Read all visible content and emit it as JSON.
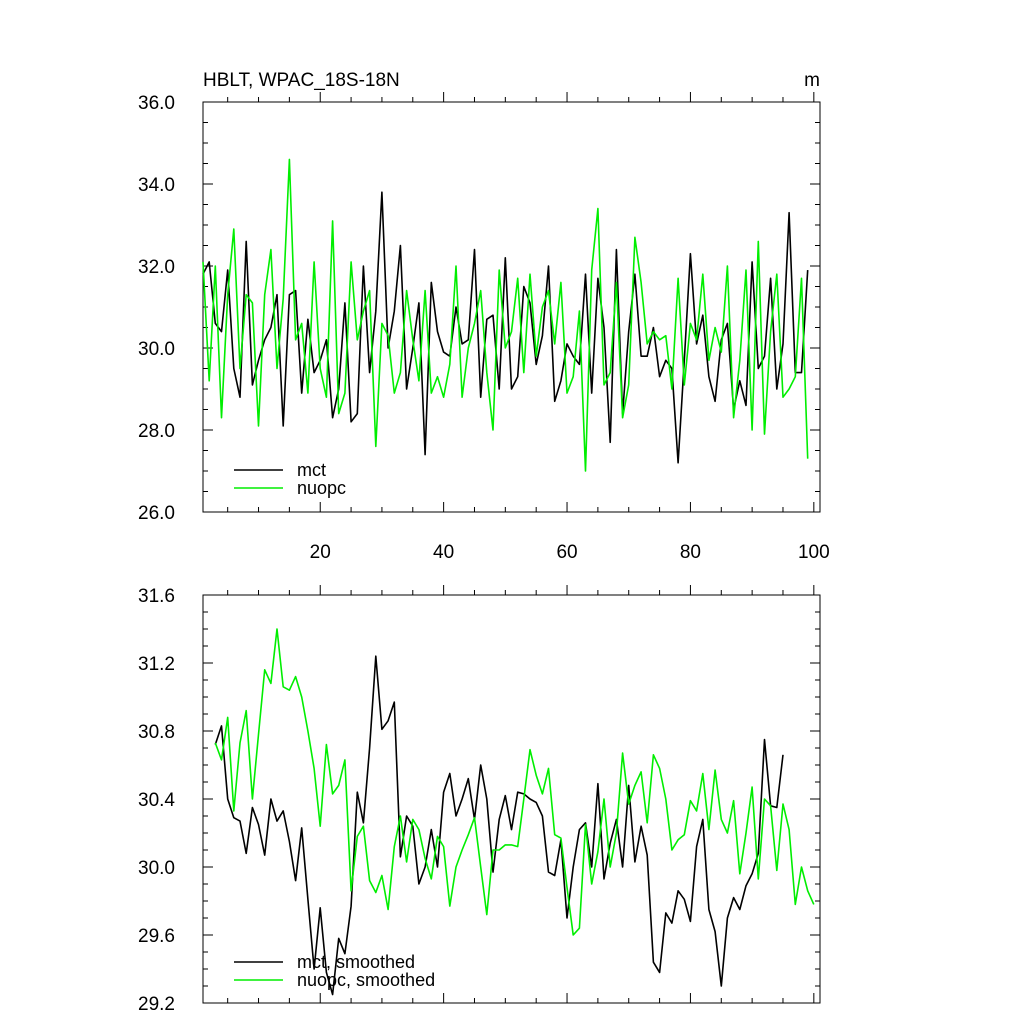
{
  "header": {
    "title": "HBLT, WPAC_18S-18N",
    "units": "m"
  },
  "chart_data": [
    {
      "type": "line",
      "title": "HBLT, WPAC_18S-18N",
      "units": "m",
      "xlim": [
        1,
        101
      ],
      "ylim": [
        26.0,
        36.0
      ],
      "xticks": [
        20,
        40,
        60,
        80,
        100
      ],
      "yticks": [
        "26.0",
        "28.0",
        "30.0",
        "32.0",
        "34.0",
        "36.0"
      ],
      "legend_position": "bottom-left",
      "series": [
        {
          "name": "mct",
          "color": "#000000",
          "x_start": 1,
          "values": [
            31.8,
            32.1,
            30.6,
            30.4,
            31.9,
            29.5,
            28.8,
            32.6,
            29.1,
            29.7,
            30.2,
            30.5,
            31.3,
            28.1,
            31.3,
            31.4,
            28.9,
            30.7,
            29.4,
            29.7,
            30.2,
            28.3,
            29.0,
            31.1,
            28.2,
            28.4,
            32.0,
            29.4,
            30.9,
            33.8,
            30.0,
            30.9,
            32.5,
            29.0,
            30.0,
            31.1,
            27.4,
            31.6,
            30.4,
            29.9,
            29.8,
            31.0,
            30.1,
            30.2,
            32.4,
            28.8,
            30.7,
            30.8,
            29.0,
            32.2,
            29.0,
            29.3,
            31.5,
            31.1,
            29.6,
            30.3,
            32.0,
            28.7,
            29.2,
            30.1,
            29.8,
            29.6,
            31.8,
            28.9,
            31.7,
            30.5,
            27.7,
            32.4,
            28.4,
            30.4,
            31.8,
            29.8,
            29.8,
            30.5,
            29.3,
            29.7,
            29.5,
            27.2,
            29.7,
            32.3,
            30.1,
            30.8,
            29.3,
            28.7,
            30.2,
            30.6,
            28.5,
            29.2,
            28.6,
            32.1,
            29.5,
            29.8,
            31.7,
            29.0,
            30.1,
            33.3,
            29.4,
            29.4,
            31.9
          ]
        },
        {
          "name": "nuopc",
          "color": "#00ee00",
          "x_start": 1,
          "values": [
            32.1,
            29.2,
            32.0,
            28.3,
            31.3,
            32.9,
            29.5,
            31.3,
            31.1,
            28.1,
            31.3,
            32.4,
            29.5,
            31.2,
            34.6,
            30.2,
            30.6,
            28.9,
            32.1,
            29.5,
            28.8,
            33.1,
            28.4,
            28.9,
            32.1,
            30.2,
            30.9,
            31.4,
            27.6,
            30.6,
            30.3,
            28.9,
            29.4,
            31.4,
            30.2,
            29.2,
            31.4,
            28.9,
            29.3,
            28.8,
            29.6,
            32.0,
            28.8,
            30.0,
            30.6,
            31.4,
            29.4,
            28.0,
            31.9,
            30.0,
            30.4,
            31.7,
            29.4,
            31.8,
            29.8,
            31.0,
            31.4,
            30.1,
            31.6,
            28.9,
            29.3,
            30.9,
            27.0,
            31.9,
            33.4,
            29.1,
            29.4,
            31.6,
            28.3,
            29.1,
            32.7,
            31.6,
            30.1,
            30.4,
            30.2,
            30.3,
            29.0,
            31.7,
            29.1,
            30.6,
            30.2,
            31.8,
            29.7,
            30.5,
            29.9,
            32.0,
            28.3,
            29.7,
            31.9,
            28.0,
            32.6,
            27.9,
            30.4,
            31.8,
            28.8,
            29.0,
            29.3,
            31.7,
            27.3
          ]
        }
      ]
    },
    {
      "type": "line",
      "xlim": [
        1,
        101
      ],
      "ylim": [
        29.2,
        31.6
      ],
      "xticks": [
        20,
        40,
        60,
        80,
        100
      ],
      "yticks": [
        "29.2",
        "29.6",
        "30.0",
        "30.4",
        "30.8",
        "31.2",
        "31.6"
      ],
      "legend_position": "bottom-left",
      "series": [
        {
          "name": "mct, smoothed",
          "color": "#000000",
          "x_start": 3,
          "values": [
            30.72,
            30.83,
            30.4,
            30.29,
            30.27,
            30.08,
            30.35,
            30.25,
            30.07,
            30.4,
            30.27,
            30.33,
            30.15,
            29.92,
            30.23,
            29.81,
            29.4,
            29.76,
            29.38,
            29.25,
            29.58,
            29.49,
            29.77,
            30.44,
            30.26,
            30.7,
            31.24,
            30.81,
            30.86,
            30.97,
            30.06,
            30.3,
            30.24,
            29.9,
            30.0,
            30.22,
            30.0,
            30.44,
            30.55,
            30.3,
            30.4,
            30.52,
            30.28,
            30.6,
            30.4,
            29.97,
            30.28,
            30.42,
            30.22,
            30.44,
            30.43,
            30.4,
            30.38,
            30.3,
            29.97,
            29.95,
            30.16,
            29.7,
            30.0,
            30.22,
            30.26,
            30.0,
            30.49,
            29.93,
            30.14,
            30.28,
            30.0,
            30.48,
            30.03,
            30.24,
            30.07,
            29.44,
            29.38,
            29.73,
            29.67,
            29.86,
            29.81,
            29.68,
            30.12,
            30.28,
            29.75,
            29.62,
            29.3,
            29.7,
            29.82,
            29.75,
            29.89,
            29.96,
            30.08,
            30.75,
            30.36,
            30.35,
            30.66
          ]
        },
        {
          "name": "nuopc, smoothed",
          "color": "#00ee00",
          "x_start": 3,
          "values": [
            30.73,
            30.63,
            30.88,
            30.33,
            30.73,
            30.92,
            30.4,
            30.78,
            31.16,
            31.08,
            31.4,
            31.06,
            31.04,
            31.12,
            31.0,
            30.8,
            30.58,
            30.24,
            30.72,
            30.43,
            30.48,
            30.63,
            29.86,
            30.18,
            30.24,
            29.92,
            29.85,
            29.95,
            29.75,
            30.12,
            30.3,
            30.03,
            30.28,
            30.22,
            30.05,
            29.93,
            30.18,
            30.12,
            29.77,
            30.0,
            30.1,
            30.19,
            30.29,
            30.0,
            29.72,
            30.1,
            30.1,
            30.13,
            30.13,
            30.12,
            30.4,
            30.69,
            30.54,
            30.43,
            30.58,
            30.19,
            30.17,
            29.88,
            29.6,
            29.64,
            30.25,
            29.9,
            30.09,
            30.4,
            30.0,
            30.2,
            30.67,
            30.37,
            30.48,
            30.56,
            30.26,
            30.66,
            30.58,
            30.4,
            30.1,
            30.16,
            30.19,
            30.39,
            30.33,
            30.55,
            30.22,
            30.57,
            30.28,
            30.2,
            30.39,
            29.96,
            30.2,
            30.47,
            29.93,
            30.4,
            30.36,
            29.98,
            30.37,
            30.22,
            29.78,
            30.0,
            29.86,
            29.78
          ]
        }
      ]
    }
  ]
}
